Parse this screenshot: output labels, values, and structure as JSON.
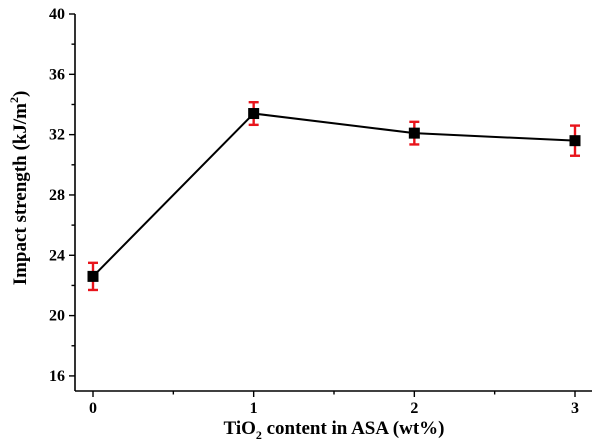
{
  "chart_data": {
    "type": "line",
    "title": "",
    "xlabel": {
      "pre": "TiO",
      "sub": "2",
      "post": " content in ASA (wt%)"
    },
    "ylabel": {
      "pre": "Impact strength (kJ/m",
      "sup": "2",
      "post": ")"
    },
    "xlim": [
      0,
      3
    ],
    "ylim": [
      15,
      40
    ],
    "x_ticks": [
      0,
      1,
      2,
      3
    ],
    "x_tick_labels": [
      "0",
      "1",
      "2",
      "3"
    ],
    "y_ticks": [
      16,
      20,
      24,
      28,
      32,
      36,
      40
    ],
    "y_tick_labels": [
      "16",
      "20",
      "24",
      "28",
      "32",
      "36",
      "40"
    ],
    "grid": false,
    "legend": "none",
    "series": [
      {
        "x": [
          0,
          1,
          2,
          3
        ],
        "y": [
          22.6,
          33.4,
          32.1,
          31.6
        ],
        "error": [
          0.9,
          0.75,
          0.75,
          1.0
        ],
        "line_color": "#000000",
        "marker": "square",
        "marker_color": "#000000",
        "error_color": "#e8141b"
      }
    ]
  }
}
